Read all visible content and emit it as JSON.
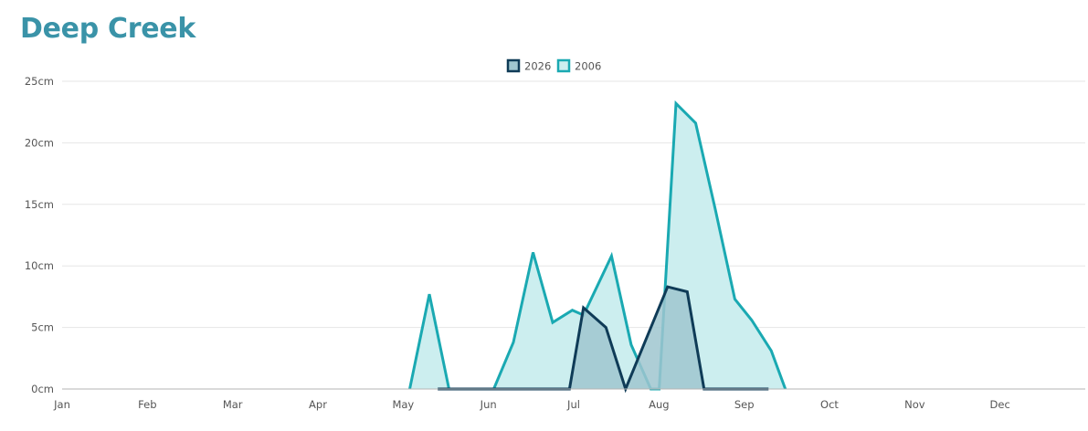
{
  "page": {
    "title": "Deep Creek"
  },
  "chart_data": {
    "type": "area",
    "ylim": [
      0,
      25
    ],
    "y_ticks": [
      "0cm",
      "5cm",
      "10cm",
      "15cm",
      "20cm",
      "25cm"
    ],
    "y_tick_values": [
      0,
      5,
      10,
      15,
      20,
      25
    ],
    "x_tick_labels": [
      "Jan",
      "Feb",
      "Mar",
      "Apr",
      "May",
      "Jun",
      "Jul",
      "Aug",
      "Sep",
      "Oct",
      "Nov",
      "Dec"
    ],
    "x_range_months": [
      0,
      12
    ],
    "grid": true,
    "legend_position": "top-center",
    "series": [
      {
        "name": "2026",
        "stroke": "#0f3b57",
        "fill": "#9fc6cf",
        "points": [
          [
            "2026-05-15",
            0
          ],
          [
            "2026-06-15",
            0
          ],
          [
            "2026-07-01",
            0
          ],
          [
            "2026-07-06",
            6.6
          ],
          [
            "2026-07-14",
            5.0
          ],
          [
            "2026-07-21",
            0
          ],
          [
            "2026-08-05",
            8.3
          ],
          [
            "2026-08-12",
            7.9
          ],
          [
            "2026-08-18",
            0
          ],
          [
            "2026-09-10",
            0
          ]
        ]
      },
      {
        "name": "2006",
        "stroke": "#1aa9b2",
        "fill": "#cceeef",
        "points": [
          [
            "2006-05-05",
            0
          ],
          [
            "2006-05-12",
            7.7
          ],
          [
            "2006-05-19",
            0
          ],
          [
            "2006-06-04",
            0
          ],
          [
            "2006-06-11",
            3.8
          ],
          [
            "2006-06-18",
            11.1
          ],
          [
            "2006-06-25",
            5.4
          ],
          [
            "2006-07-02",
            6.4
          ],
          [
            "2006-07-06",
            6.0
          ],
          [
            "2006-07-16",
            10.8
          ],
          [
            "2006-07-23",
            3.6
          ],
          [
            "2006-07-30",
            0
          ],
          [
            "2006-08-02",
            0
          ],
          [
            "2006-08-08",
            23.2
          ],
          [
            "2006-08-15",
            21.6
          ],
          [
            "2006-08-22",
            14.6
          ],
          [
            "2006-08-29",
            7.3
          ],
          [
            "2006-09-04",
            5.6
          ],
          [
            "2006-09-11",
            3.1
          ],
          [
            "2006-09-16",
            0
          ]
        ]
      }
    ]
  }
}
